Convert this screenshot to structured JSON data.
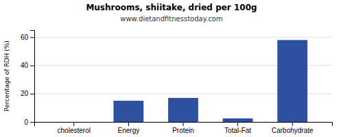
{
  "chart_data": {
    "type": "bar",
    "title": "Mushrooms, shiitake, dried per 100g",
    "subtitle": "www.dietandfitnesstoday.com",
    "categories": [
      "cholesterol",
      "Energy",
      "Protein",
      "Total-Fat",
      "Carbohydrate"
    ],
    "values": [
      0,
      15,
      17,
      2.5,
      58
    ],
    "color": "#2e4e9e",
    "ylabel": "Percentage of RDH (%)",
    "ylim": [
      0,
      65
    ],
    "yticks": [
      0,
      20,
      40,
      60
    ],
    "grid": true
  }
}
